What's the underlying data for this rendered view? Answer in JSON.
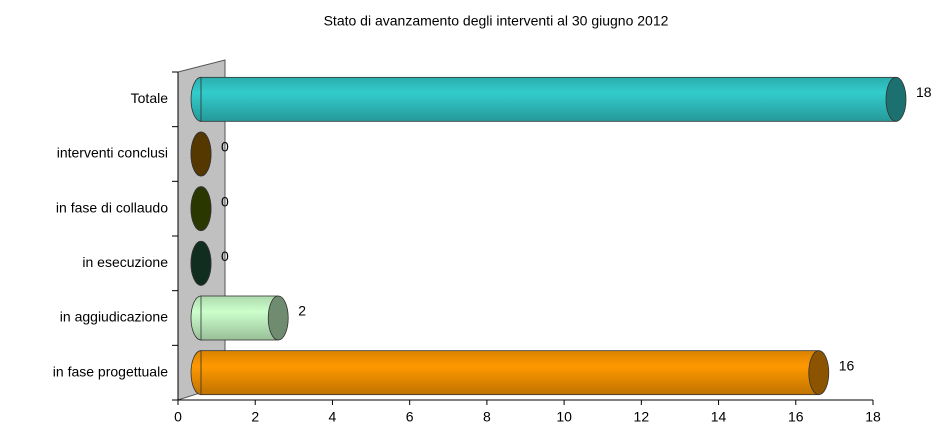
{
  "chart_data": {
    "type": "bar",
    "orientation": "horizontal",
    "title": "Stato di avanzamento degli interventi al 30 giugno 2012",
    "categories": [
      "Totale",
      "interventi conclusi",
      "in fase di collaudo",
      "in esecuzione",
      "in aggiudicazione",
      "in fase progettuale"
    ],
    "values": [
      18,
      0,
      0,
      0,
      2,
      16
    ],
    "colors": [
      "#33cccc",
      "#996600",
      "#4d6600",
      "#1f5238",
      "#ccffcc",
      "#ff9900"
    ],
    "xlim": [
      0,
      18
    ],
    "xticks": [
      0,
      2,
      4,
      6,
      8,
      10,
      12,
      14,
      16,
      18
    ]
  }
}
